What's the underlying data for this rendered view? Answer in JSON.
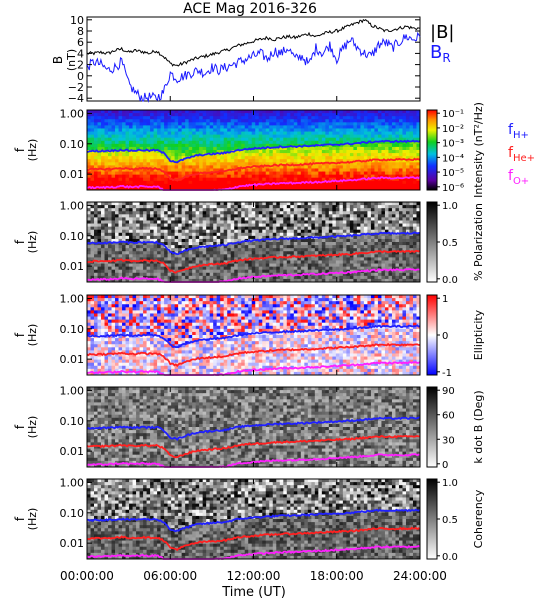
{
  "title": "ACE Mag 2016-326",
  "colors": {
    "b_total": "#000000",
    "b_r": "#1a1aff",
    "f_h": "#2020ff",
    "f_he": "#ff2020",
    "f_o": "#ff20ff"
  },
  "chart_data": [
    {
      "type": "line",
      "panel": "magnetic-field",
      "ylabel": "B (nT)",
      "yticks": [
        -4,
        -2,
        0,
        2,
        4,
        6,
        8,
        10
      ],
      "ylim": [
        -4.5,
        10.5
      ],
      "series": [
        {
          "name": "|B|",
          "color": "#000000",
          "x": [
            0,
            0.5,
            1,
            1.5,
            2,
            2.5,
            3,
            3.5,
            4,
            4.5,
            5,
            5.5,
            6,
            6.5,
            7,
            7.5,
            8,
            8.5,
            9,
            9.5,
            10,
            10.5,
            11,
            11.5,
            12,
            12.5,
            13,
            13.5,
            14,
            14.5,
            15,
            15.5,
            16,
            16.5,
            17,
            17.5,
            18,
            18.5,
            19,
            19.5,
            20,
            20.5,
            21,
            21.5,
            22,
            22.5,
            23,
            23.5,
            24
          ],
          "values": [
            4,
            4,
            4.2,
            4,
            4.5,
            4.8,
            4.2,
            4.5,
            4.3,
            4,
            4.5,
            3.5,
            2.2,
            1.8,
            2.3,
            2.8,
            3.2,
            3.5,
            3.8,
            4.2,
            4.5,
            5,
            5.5,
            5.8,
            6.2,
            6.5,
            6.8,
            6.5,
            6.8,
            7,
            6.8,
            7.2,
            7.5,
            7,
            7.5,
            7.8,
            8,
            8.5,
            9,
            9.5,
            10,
            9,
            8.5,
            8,
            8.2,
            8.5,
            8.8,
            8.5,
            8.5
          ]
        },
        {
          "name": "BR",
          "color": "#1a1aff",
          "x": [
            0,
            0.5,
            1,
            1.5,
            2,
            2.5,
            3,
            3.5,
            4,
            4.5,
            5,
            5.5,
            6,
            6.5,
            7,
            7.5,
            8,
            8.5,
            9,
            9.5,
            10,
            10.5,
            11,
            11.5,
            12,
            12.5,
            13,
            13.5,
            14,
            14.5,
            15,
            15.5,
            16,
            16.5,
            17,
            17.5,
            18,
            18.5,
            19,
            19.5,
            20,
            20.5,
            21,
            21.5,
            22,
            22.5,
            23,
            23.5,
            24
          ],
          "values": [
            1.5,
            2.5,
            2,
            1,
            1.5,
            2.5,
            -1.5,
            -3,
            -4,
            -3.8,
            -4,
            -3,
            0.5,
            -0.5,
            0,
            0.5,
            1,
            0.5,
            1.5,
            1,
            1.5,
            2,
            2.5,
            3,
            3.5,
            4,
            3,
            4.5,
            4,
            5,
            3,
            3.5,
            2,
            5,
            4,
            5.5,
            3,
            5,
            6.5,
            5,
            4,
            3.5,
            5.5,
            6,
            5,
            6,
            7,
            6.5,
            7
          ]
        }
      ],
      "legend": [
        "|B|",
        "BR"
      ]
    },
    {
      "type": "heatmap",
      "panel": "intensity",
      "ylabel": "f (Hz)",
      "yticks": [
        "0.01",
        "0.10",
        "1.00"
      ],
      "colorbar_label": "Intensity (nT²/Hz)",
      "colorbar_ticks": [
        "10⁻⁶",
        "10⁻⁵",
        "10⁻⁴",
        "10⁻³",
        "10⁻²",
        "10⁻¹"
      ],
      "legend": [
        "fH+",
        "fHe+",
        "fO+"
      ]
    },
    {
      "type": "heatmap",
      "panel": "polarization",
      "ylabel": "f (Hz)",
      "yticks": [
        "0.01",
        "0.10",
        "1.00"
      ],
      "colorbar_label": "% Polarization",
      "colorbar_ticks": [
        "0.0",
        "0.5",
        "1.0"
      ]
    },
    {
      "type": "heatmap",
      "panel": "ellipticity",
      "ylabel": "f (Hz)",
      "yticks": [
        "0.01",
        "0.10",
        "1.00"
      ],
      "colorbar_label": "Ellipticity",
      "colorbar_ticks": [
        "-1",
        "0",
        "1"
      ]
    },
    {
      "type": "heatmap",
      "panel": "k-dot-b",
      "ylabel": "f (Hz)",
      "yticks": [
        "0.01",
        "0.10",
        "1.00"
      ],
      "colorbar_label": "k dot B (Deg)",
      "colorbar_ticks": [
        "0",
        "30",
        "60",
        "90"
      ]
    },
    {
      "type": "heatmap",
      "panel": "coherency",
      "ylabel": "f (Hz)",
      "yticks": [
        "0.01",
        "0.10",
        "1.00"
      ],
      "colorbar_label": "Coherency",
      "colorbar_ticks": [
        "0.0",
        "0.5",
        "1.0"
      ]
    }
  ],
  "gyrofrequencies": {
    "x": [
      0,
      1,
      2,
      2.5,
      3,
      3.5,
      4,
      4.5,
      5,
      5.5,
      6,
      6.5,
      7,
      8,
      9,
      10,
      11,
      12,
      13,
      14,
      15,
      16,
      17,
      18,
      19,
      20,
      21,
      22,
      23,
      24
    ],
    "fH": [
      0.057,
      0.058,
      0.06,
      0.063,
      0.06,
      0.06,
      0.062,
      0.06,
      0.062,
      0.05,
      0.028,
      0.025,
      0.031,
      0.042,
      0.046,
      0.05,
      0.063,
      0.07,
      0.075,
      0.08,
      0.082,
      0.086,
      0.09,
      0.095,
      0.1,
      0.11,
      0.12,
      0.12,
      0.12,
      0.125
    ],
    "fHe": [
      0.0143,
      0.0145,
      0.015,
      0.0158,
      0.015,
      0.015,
      0.0155,
      0.015,
      0.0155,
      0.0125,
      0.007,
      0.0063,
      0.0078,
      0.0105,
      0.0115,
      0.0125,
      0.0158,
      0.0175,
      0.0188,
      0.02,
      0.0205,
      0.0215,
      0.0225,
      0.0238,
      0.025,
      0.0275,
      0.03,
      0.03,
      0.03,
      0.031
    ],
    "fO": [
      0.0036,
      0.0036,
      0.0038,
      0.004,
      0.0038,
      0.0038,
      0.0039,
      0.0038,
      0.0039,
      0.0031,
      0.0018,
      0.0016,
      0.002,
      0.0026,
      0.0029,
      0.0031,
      0.004,
      0.0044,
      0.0047,
      0.005,
      0.0051,
      0.0054,
      0.0056,
      0.006,
      0.0063,
      0.0069,
      0.0075,
      0.0075,
      0.0075,
      0.0078
    ]
  },
  "x_axis": {
    "label": "Time (UT)",
    "ticks": [
      "00:00:00",
      "06:00:00",
      "12:00:00",
      "18:00:00",
      "24:00:00"
    ],
    "tick_hours": [
      0,
      6,
      12,
      18,
      24
    ],
    "xlim": [
      0,
      24
    ]
  },
  "legend_labels": {
    "b_total": "|B|",
    "b_r_main": "B",
    "b_r_sub": "R",
    "f_h_main": "f",
    "f_h_sub": "H+",
    "f_he_main": "f",
    "f_he_sub": "He+",
    "f_o_main": "f",
    "f_o_sub": "O+"
  }
}
